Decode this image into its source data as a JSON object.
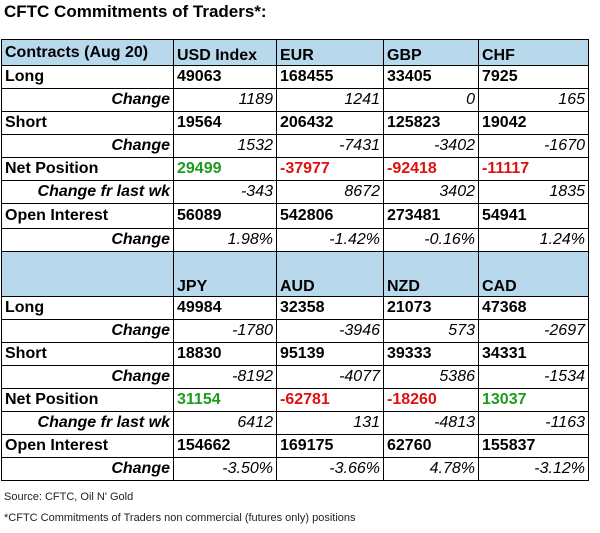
{
  "title": "CFTC Commitments of Traders*:",
  "corner_label": "Contracts (Aug 20)",
  "blocks": [
    {
      "currencies": [
        "USD Index",
        "EUR",
        "GBP",
        "CHF"
      ],
      "rows": [
        {
          "label": "Long",
          "kind": "val",
          "values": [
            "49063",
            "168455",
            "33405",
            "7925"
          ]
        },
        {
          "label": "Change",
          "kind": "chg",
          "values": [
            "1189",
            "1241",
            "0",
            "165"
          ]
        },
        {
          "label": "Short",
          "kind": "val",
          "values": [
            "19564",
            "206432",
            "125823",
            "19042"
          ]
        },
        {
          "label": "Change",
          "kind": "chg",
          "values": [
            "1532",
            "-7431",
            "-3402",
            "-1670"
          ]
        },
        {
          "label": "Net Position",
          "kind": "net",
          "values": [
            "29499",
            "-37977",
            "-92418",
            "-11117"
          ]
        },
        {
          "label": "Change fr last wk",
          "kind": "chg",
          "values": [
            "-343",
            "8672",
            "3402",
            "1835"
          ]
        },
        {
          "label": "Open Interest",
          "kind": "val",
          "values": [
            "56089",
            "542806",
            "273481",
            "54941"
          ]
        },
        {
          "label": "Change",
          "kind": "chg",
          "values": [
            "1.98%",
            "-1.42%",
            "-0.16%",
            "1.24%"
          ]
        }
      ]
    },
    {
      "currencies": [
        "JPY",
        "AUD",
        "NZD",
        "CAD"
      ],
      "rows": [
        {
          "label": "Long",
          "kind": "val",
          "values": [
            "49984",
            "32358",
            "21073",
            "47368"
          ]
        },
        {
          "label": "Change",
          "kind": "chg",
          "values": [
            "-1780",
            "-3946",
            "573",
            "-2697"
          ]
        },
        {
          "label": "Short",
          "kind": "val",
          "values": [
            "18830",
            "95139",
            "39333",
            "34331"
          ]
        },
        {
          "label": "Change",
          "kind": "chg",
          "values": [
            "-8192",
            "-4077",
            "5386",
            "-1534"
          ]
        },
        {
          "label": "Net Position",
          "kind": "net",
          "values": [
            "31154",
            "-62781",
            "-18260",
            "13037"
          ]
        },
        {
          "label": "Change fr last wk",
          "kind": "chg",
          "values": [
            "6412",
            "131",
            "-4813",
            "-1163"
          ]
        },
        {
          "label": "Open Interest",
          "kind": "val",
          "values": [
            "154662",
            "169175",
            "62760",
            "155837"
          ]
        },
        {
          "label": "Change",
          "kind": "chg",
          "values": [
            "-3.50%",
            "-3.66%",
            "4.78%",
            "-3.12%"
          ]
        }
      ]
    }
  ],
  "source": "Source: CFTC, Oil N' Gold",
  "footnote": "*CFTC Commitments of Traders non commercial (futures only) positions",
  "colors": {
    "header_bg": "#b8d8ec",
    "positive": "#1e9b1e",
    "negative": "#e01010"
  }
}
